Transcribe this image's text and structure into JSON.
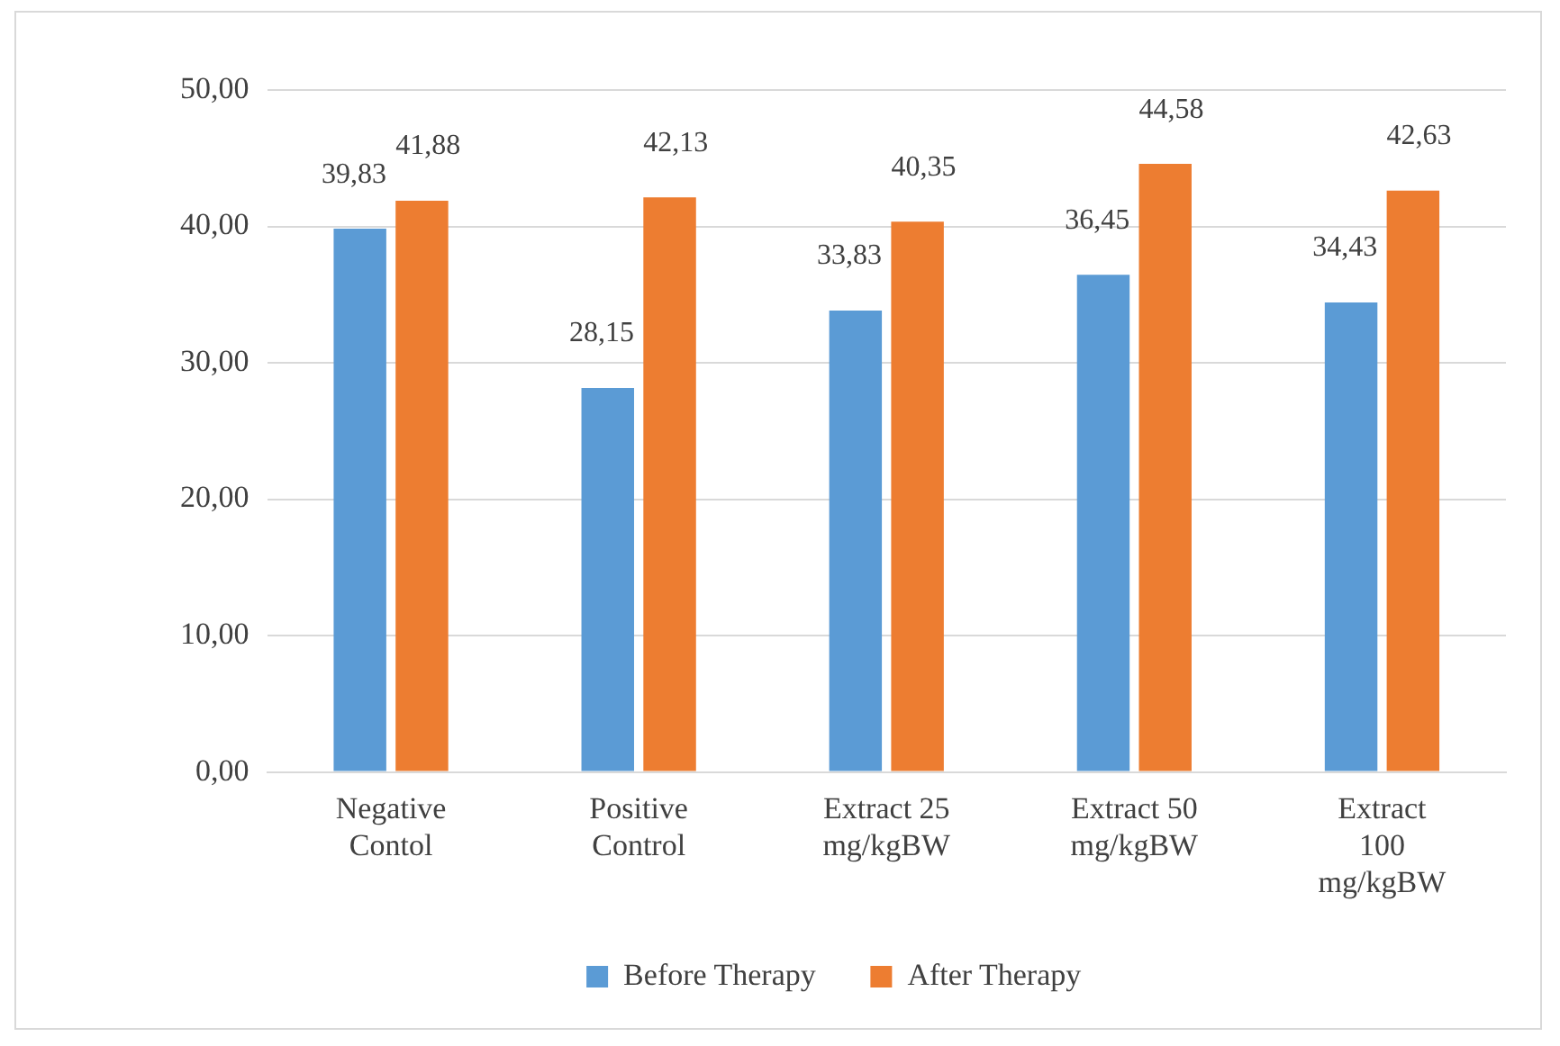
{
  "chart_data": {
    "type": "bar",
    "categories": [
      "Negative Contol",
      "Positive Control",
      "Extract 25 mg/kgBW",
      "Extract 50 mg/kgBW",
      "Extract 100 mg/kgBW"
    ],
    "series": [
      {
        "name": "Before Therapy",
        "color": "#5b9bd5",
        "values": [
          39.83,
          28.15,
          33.83,
          36.45,
          34.43
        ],
        "value_labels": [
          "39,83",
          "28,15",
          "33,83",
          "36,45",
          "34,43"
        ]
      },
      {
        "name": "After Therapy",
        "color": "#ed7d31",
        "values": [
          41.88,
          42.13,
          40.35,
          44.58,
          42.63
        ],
        "value_labels": [
          "41,88",
          "42,13",
          "40,35",
          "44,58",
          "42,63"
        ]
      }
    ],
    "ylim": [
      0,
      50
    ],
    "yticks": [
      {
        "value": 0,
        "label": "0,00"
      },
      {
        "value": 10,
        "label": "10,00"
      },
      {
        "value": 20,
        "label": "20,00"
      },
      {
        "value": 30,
        "label": "30,00"
      },
      {
        "value": 40,
        "label": "40,00"
      },
      {
        "value": 50,
        "label": "50,00"
      }
    ],
    "grid": "y",
    "legend": "bottom"
  }
}
